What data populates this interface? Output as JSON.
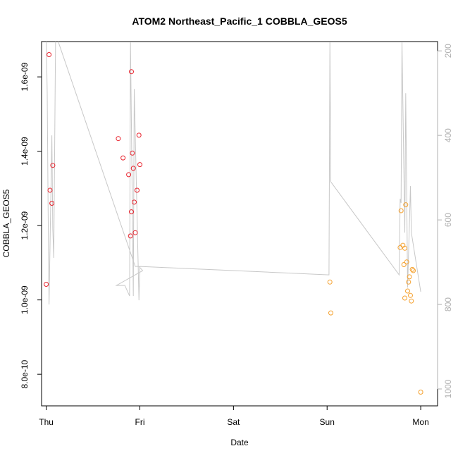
{
  "chart_data": {
    "type": "scatter",
    "title": "ATOM2 Northeast_Pacific_1 COBBLA_GEOS5",
    "xlabel": "Date",
    "ylabel": "COBBLA_GEOS5",
    "x_ticks": [
      "Thu",
      "Fri",
      "Sat",
      "Sun",
      "Mon"
    ],
    "y_ticks": [
      "8.0e-10",
      "1.0e-09",
      "1.2e-09",
      "1.4e-09",
      "1.6e-09"
    ],
    "y2_ticks": [
      "200",
      "400",
      "600",
      "800",
      "1000"
    ],
    "xlim": [
      -0.05,
      4.18
    ],
    "ylim": [
      7.15e-10,
      1.695e-09
    ],
    "y2lim": [
      1040,
      178
    ],
    "y2_reversed": true,
    "grid": false,
    "colors": {
      "series_red": "#e8212b",
      "series_orange": "#f5a12e",
      "line": "#c8c8c8",
      "axis": "#000000",
      "right_axis": "#b0b0b0"
    },
    "series": [
      {
        "color": "red",
        "points": [
          {
            "x": 0.0,
            "y": 1.042e-09
          },
          {
            "x": 0.03,
            "y": 1.66e-09
          },
          {
            "x": 0.04,
            "y": 1.295e-09
          },
          {
            "x": 0.06,
            "y": 1.26e-09
          },
          {
            "x": 0.07,
            "y": 1.362e-09
          },
          {
            "x": 0.77,
            "y": 1.434e-09
          },
          {
            "x": 0.82,
            "y": 1.382e-09
          },
          {
            "x": 0.88,
            "y": 1.337e-09
          },
          {
            "x": 0.9,
            "y": 1.172e-09
          },
          {
            "x": 0.91,
            "y": 1.614e-09
          },
          {
            "x": 0.91,
            "y": 1.237e-09
          },
          {
            "x": 0.92,
            "y": 1.395e-09
          },
          {
            "x": 0.93,
            "y": 1.354e-09
          },
          {
            "x": 0.94,
            "y": 1.263e-09
          },
          {
            "x": 0.95,
            "y": 1.181e-09
          },
          {
            "x": 0.97,
            "y": 1.295e-09
          },
          {
            "x": 0.99,
            "y": 1.443e-09
          },
          {
            "x": 1.0,
            "y": 1.364e-09
          }
        ]
      },
      {
        "color": "orange",
        "points": [
          {
            "x": 3.03,
            "y": 1.048e-09
          },
          {
            "x": 3.04,
            "y": 9.65e-10
          },
          {
            "x": 3.78,
            "y": 1.141e-09
          },
          {
            "x": 3.79,
            "y": 1.24e-09
          },
          {
            "x": 3.81,
            "y": 1.147e-09
          },
          {
            "x": 3.82,
            "y": 1.095e-09
          },
          {
            "x": 3.83,
            "y": 1.005e-09
          },
          {
            "x": 3.83,
            "y": 1.139e-09
          },
          {
            "x": 3.84,
            "y": 1.256e-09
          },
          {
            "x": 3.85,
            "y": 1.102e-09
          },
          {
            "x": 3.86,
            "y": 1.024e-09
          },
          {
            "x": 3.87,
            "y": 1.048e-09
          },
          {
            "x": 3.88,
            "y": 1.062e-09
          },
          {
            "x": 3.89,
            "y": 1.012e-09
          },
          {
            "x": 3.9,
            "y": 9.97e-10
          },
          {
            "x": 3.91,
            "y": 1.082e-09
          },
          {
            "x": 3.92,
            "y": 1.079e-09
          },
          {
            "x": 4.0,
            "y": 7.52e-10
          }
        ]
      }
    ],
    "secondary_line": {
      "color": "gray",
      "axis": "right",
      "points": [
        {
          "x": 0.0,
          "y2": 160
        },
        {
          "x": 0.01,
          "y2": 300
        },
        {
          "x": 0.02,
          "y2": 580
        },
        {
          "x": 0.03,
          "y2": 800
        },
        {
          "x": 0.05,
          "y2": 530
        },
        {
          "x": 0.06,
          "y2": 400
        },
        {
          "x": 0.07,
          "y2": 620
        },
        {
          "x": 0.08,
          "y2": 690
        },
        {
          "x": 0.1,
          "y2": 160
        },
        {
          "x": 0.95,
          "y2": 710
        },
        {
          "x": 0.99,
          "y2": 710
        },
        {
          "x": 1.03,
          "y2": 720
        },
        {
          "x": 0.75,
          "y2": 755
        },
        {
          "x": 0.84,
          "y2": 755
        },
        {
          "x": 0.89,
          "y2": 780
        },
        {
          "x": 0.9,
          "y2": 180
        },
        {
          "x": 0.93,
          "y2": 780
        },
        {
          "x": 0.94,
          "y2": 290
        },
        {
          "x": 0.99,
          "y2": 790
        },
        {
          "x": 1.0,
          "y2": 710
        },
        {
          "x": 3.02,
          "y2": 730
        },
        {
          "x": 3.03,
          "y2": 180
        },
        {
          "x": 3.04,
          "y2": 510
        },
        {
          "x": 3.77,
          "y2": 730
        },
        {
          "x": 3.78,
          "y2": 550
        },
        {
          "x": 3.79,
          "y2": 560
        },
        {
          "x": 3.8,
          "y2": 180
        },
        {
          "x": 3.83,
          "y2": 630
        },
        {
          "x": 3.84,
          "y2": 300
        },
        {
          "x": 3.86,
          "y2": 760
        },
        {
          "x": 3.89,
          "y2": 520
        },
        {
          "x": 3.9,
          "y2": 630
        },
        {
          "x": 4.0,
          "y2": 770
        }
      ]
    }
  }
}
